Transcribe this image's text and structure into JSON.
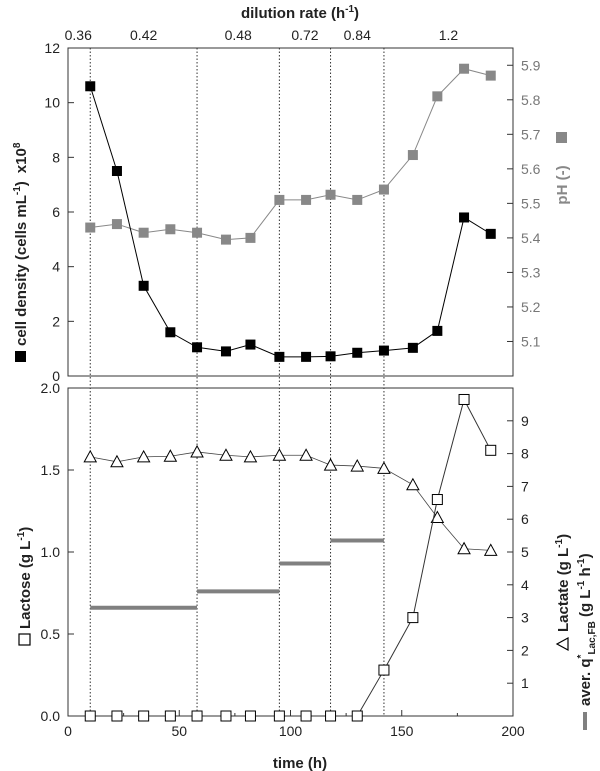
{
  "chart_data": [
    {
      "type": "scatter",
      "panel": "top",
      "x_label_top": "dilution rate (h-1)",
      "dilution_rates": [
        "0.36",
        "0.42",
        "0.48",
        "0.72",
        "0.84",
        "1.2"
      ],
      "y_left_label": "cell density (cells mL-1) x10^8",
      "y_right_label": "pH (-)",
      "ylim_left": [
        0,
        12
      ],
      "ylim_right": [
        5.0,
        5.95
      ],
      "series": [
        {
          "name": "cell density",
          "marker": "filled-square",
          "color": "#000000",
          "axis": "left",
          "x": [
            10,
            22,
            34,
            46,
            58,
            71,
            82,
            95,
            107,
            118,
            130,
            142,
            155,
            166,
            178,
            190
          ],
          "y": [
            10.6,
            7.5,
            3.3,
            1.6,
            1.05,
            0.9,
            1.15,
            0.7,
            0.7,
            0.72,
            0.85,
            0.93,
            1.03,
            1.65,
            5.8,
            5.2
          ]
        },
        {
          "name": "pH",
          "marker": "filled-square",
          "color": "#888888",
          "axis": "right",
          "x": [
            10,
            22,
            34,
            46,
            58,
            71,
            82,
            95,
            107,
            118,
            130,
            142,
            155,
            166,
            178,
            190
          ],
          "y": [
            5.43,
            5.44,
            5.415,
            5.425,
            5.415,
            5.395,
            5.4,
            5.51,
            5.51,
            5.525,
            5.51,
            5.54,
            5.64,
            5.81,
            5.89,
            5.87
          ]
        }
      ]
    },
    {
      "type": "scatter",
      "panel": "bottom",
      "xlabel": "time (h)",
      "xlim": [
        0,
        200
      ],
      "y_left_label": "Lactose (g L-1)",
      "y_right_label": "Lactate (g L-1) / aver. q*Lac,FB (g L-1 h-1)",
      "ylim_left": [
        0,
        2.0
      ],
      "ylim_right": [
        0,
        10
      ],
      "series": [
        {
          "name": "Lactose",
          "marker": "open-square",
          "axis": "left",
          "x": [
            10,
            22,
            34,
            46,
            58,
            71,
            82,
            95,
            107,
            118,
            130,
            142,
            155,
            166,
            178,
            190
          ],
          "y": [
            0,
            0,
            0,
            0,
            0,
            0,
            0,
            0,
            0,
            0,
            0,
            0.28,
            0.6,
            1.32,
            1.93,
            1.62
          ]
        },
        {
          "name": "Lactate",
          "marker": "open-triangle",
          "axis": "right",
          "x": [
            10,
            22,
            34,
            46,
            58,
            71,
            82,
            95,
            107,
            118,
            130,
            142,
            155,
            166,
            178,
            190
          ],
          "y": [
            7.9,
            7.75,
            7.9,
            7.92,
            8.05,
            7.95,
            7.9,
            7.95,
            7.95,
            7.65,
            7.62,
            7.55,
            7.05,
            6.05,
            5.1,
            5.05
          ]
        },
        {
          "name": "aver. q*Lac,FB",
          "marker": "bar-segment",
          "color": "#808080",
          "axis": "right",
          "segments": [
            {
              "x0": 10,
              "x1": 58,
              "y": 3.3
            },
            {
              "x0": 58,
              "x1": 95,
              "y": 3.8
            },
            {
              "x0": 95,
              "x1": 118,
              "y": 4.65
            },
            {
              "x0": 118,
              "x1": 142,
              "y": 5.35
            }
          ]
        }
      ]
    }
  ],
  "vertical_lines_x": [
    10,
    58,
    95,
    118,
    142
  ],
  "top_axis": {
    "title": "dilution rate (h",
    "title_sup": "-1",
    "title_end": ")"
  },
  "left_top_axis": {
    "title_main": "cell density (cells mL",
    "title_sup": "-1",
    "title_end": ")",
    "multiplier": "x10",
    "multiplier_sup": "8",
    "ticks": [
      "0",
      "2",
      "4",
      "6",
      "8",
      "10",
      "12"
    ]
  },
  "right_top_axis": {
    "title": "pH (-)",
    "ticks": [
      "5.1",
      "5.2",
      "5.3",
      "5.4",
      "5.5",
      "5.6",
      "5.7",
      "5.8",
      "5.9"
    ]
  },
  "left_bottom_axis": {
    "title_main": "Lactose (g L",
    "title_sup": "-1",
    "title_end": ")",
    "ticks": [
      "0.0",
      "0.5",
      "1.0",
      "1.5",
      "2.0"
    ]
  },
  "right_bottom_axis": {
    "title1_main": "Lactate (g L",
    "title1_sup": "-1",
    "title1_end": ")",
    "title2_main": "aver. q",
    "title2_sup": "*",
    "title2_sub": "Lac,FB",
    "title2_tail": " (g L",
    "title2_sup2": "-1",
    "title2_mid": " h",
    "title2_sup3": "-1",
    "title2_end": ")",
    "ticks": [
      "1",
      "2",
      "3",
      "4",
      "5",
      "6",
      "7",
      "8",
      "9"
    ]
  },
  "x_axis": {
    "title": "time (h)",
    "ticks": [
      "0",
      "50",
      "100",
      "150",
      "200"
    ]
  }
}
